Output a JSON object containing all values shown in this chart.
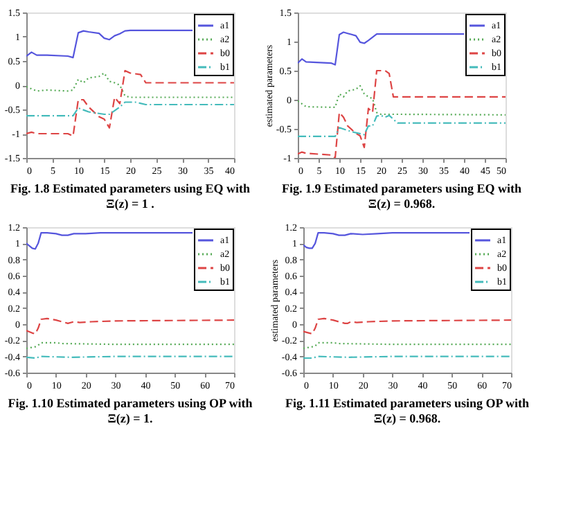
{
  "chart_data": [
    {
      "type": "line",
      "title": "Fig. 1.8 Estimated parameters using EQ with\nΞ(z) = 1 .",
      "xlim": [
        0,
        40
      ],
      "xticks": [
        0,
        5,
        10,
        15,
        20,
        25,
        30,
        35,
        40
      ],
      "ylim": [
        -1.5,
        1.5
      ],
      "yticks": [
        -1.5,
        -1,
        -0.5,
        0,
        0.5,
        1,
        1.5
      ],
      "grid": false,
      "legend": "top right",
      "series": [
        {
          "name": "a1",
          "color": "#5555dd",
          "line_style": "solid",
          "x": [
            0,
            1,
            2,
            4,
            8,
            9,
            10,
            11,
            12,
            14,
            15,
            16,
            17,
            18,
            19,
            20,
            32
          ],
          "values": [
            0.6,
            0.68,
            0.62,
            0.62,
            0.6,
            0.57,
            1.08,
            1.12,
            1.1,
            1.07,
            0.97,
            0.94,
            1.02,
            1.06,
            1.12,
            1.13,
            1.13
          ]
        },
        {
          "name": "a2",
          "color": "#55aa55",
          "line_style": "dotted",
          "x": [
            0,
            2,
            4,
            8,
            9,
            10,
            11,
            12,
            14,
            15,
            16,
            17,
            18,
            19,
            20,
            40
          ],
          "values": [
            -0.03,
            -0.12,
            -0.1,
            -0.12,
            -0.1,
            0.12,
            0.05,
            0.15,
            0.18,
            0.25,
            0.08,
            0.05,
            0,
            -0.22,
            -0.25,
            -0.25
          ]
        },
        {
          "name": "b0",
          "color": "#dd4444",
          "line_style": "dashed",
          "x": [
            0,
            1,
            2,
            8,
            9,
            10,
            11,
            12,
            14,
            15,
            16,
            17,
            18,
            19,
            20,
            22,
            23,
            40
          ],
          "values": [
            -1,
            -0.97,
            -1,
            -1,
            -1.05,
            -0.3,
            -0.3,
            -0.45,
            -0.65,
            -0.7,
            -0.88,
            -0.25,
            -0.38,
            0.3,
            0.25,
            0.22,
            0.05,
            0.05
          ]
        },
        {
          "name": "b1",
          "color": "#44bbbb",
          "line_style": "dashdot",
          "x": [
            0,
            9,
            10,
            12,
            15,
            16,
            18,
            19,
            21,
            23,
            40
          ],
          "values": [
            -0.63,
            -0.63,
            -0.47,
            -0.55,
            -0.6,
            -0.6,
            -0.45,
            -0.35,
            -0.35,
            -0.4,
            -0.4
          ]
        }
      ]
    },
    {
      "type": "line",
      "title": "Fig. 1.9 Estimated parameters using EQ with\nΞ(z) = 0.968.",
      "ylabel": "estimated parameters",
      "xlim": [
        0,
        50
      ],
      "xticks": [
        0,
        5,
        10,
        15,
        20,
        25,
        30,
        35,
        40,
        45,
        50
      ],
      "ylim": [
        -1,
        1.5
      ],
      "yticks": [
        -1,
        -0.5,
        0,
        0.5,
        1,
        1.5
      ],
      "grid": false,
      "legend": "top right",
      "series": [
        {
          "name": "a1",
          "color": "#5555dd",
          "line_style": "solid",
          "x": [
            0,
            1,
            2,
            8,
            9,
            10,
            11,
            12,
            14,
            15,
            16,
            17,
            19,
            40
          ],
          "values": [
            0.63,
            0.7,
            0.65,
            0.63,
            0.6,
            1.12,
            1.16,
            1.14,
            1.1,
            0.99,
            0.97,
            1.02,
            1.13,
            1.13
          ]
        },
        {
          "name": "a2",
          "color": "#55aa55",
          "line_style": "dotted",
          "x": [
            0,
            2,
            8,
            9,
            10,
            11,
            12,
            14,
            15,
            16,
            17,
            18,
            19,
            20,
            25,
            50
          ],
          "values": [
            -0.02,
            -0.12,
            -0.13,
            -0.13,
            0.1,
            0.05,
            0.15,
            0.18,
            0.24,
            0.1,
            0.05,
            0.02,
            -0.22,
            -0.25,
            -0.25,
            -0.26
          ]
        },
        {
          "name": "b0",
          "color": "#dd4444",
          "line_style": "dashed",
          "x": [
            0,
            1,
            2,
            8,
            9,
            10,
            11,
            12,
            14,
            15,
            16,
            17,
            18,
            19,
            21,
            22,
            23,
            50
          ],
          "values": [
            -0.93,
            -0.9,
            -0.92,
            -0.95,
            -1.0,
            -0.22,
            -0.3,
            -0.45,
            -0.58,
            -0.62,
            -0.82,
            -0.15,
            -0.22,
            0.5,
            0.5,
            0.45,
            0.05,
            0.05
          ]
        },
        {
          "name": "b1",
          "color": "#44bbbb",
          "line_style": "dashdot",
          "x": [
            0,
            9,
            10,
            13,
            16,
            17,
            18,
            19,
            20,
            21,
            22,
            24,
            50
          ],
          "values": [
            -0.63,
            -0.63,
            -0.48,
            -0.55,
            -0.6,
            -0.45,
            -0.45,
            -0.28,
            -0.27,
            -0.3,
            -0.27,
            -0.4,
            -0.4
          ]
        }
      ]
    },
    {
      "type": "line",
      "title": "Fig. 1.10  Estimated parameters using OP with\nΞ(z) = 1.",
      "xlim": [
        0,
        70
      ],
      "xticks": [
        0,
        10,
        20,
        30,
        40,
        50,
        60,
        70
      ],
      "ylim": [
        -0.6,
        1.2
      ],
      "yticks": [
        -0.6,
        -0.4,
        -0.2,
        0,
        0.2,
        0.4,
        0.6,
        0.8,
        1,
        1.2
      ],
      "grid": false,
      "legend": "top right",
      "series": [
        {
          "name": "a1",
          "color": "#5555dd",
          "line_style": "solid",
          "x": [
            0,
            1,
            2,
            3,
            4,
            5,
            7,
            10,
            12,
            14,
            16,
            20,
            25,
            30,
            56
          ],
          "values": [
            1.0,
            0.97,
            0.94,
            0.93,
            1.0,
            1.13,
            1.13,
            1.12,
            1.1,
            1.1,
            1.12,
            1.12,
            1.13,
            1.13,
            1.13
          ]
        },
        {
          "name": "a2",
          "color": "#55aa55",
          "line_style": "dotted",
          "x": [
            0,
            3,
            4,
            5,
            10,
            12,
            30,
            70
          ],
          "values": [
            -0.3,
            -0.28,
            -0.26,
            -0.23,
            -0.23,
            -0.24,
            -0.25,
            -0.25
          ]
        },
        {
          "name": "b0",
          "color": "#dd4444",
          "line_style": "dashed",
          "x": [
            0,
            2,
            3,
            4,
            5,
            7,
            10,
            12,
            14,
            16,
            18,
            22,
            30,
            70
          ],
          "values": [
            -0.08,
            -0.11,
            -0.12,
            -0.05,
            0.06,
            0.07,
            0.05,
            0.03,
            0.01,
            0.03,
            0.02,
            0.03,
            0.04,
            0.05
          ]
        },
        {
          "name": "b1",
          "color": "#44bbbb",
          "line_style": "dashdot",
          "x": [
            0,
            3,
            5,
            15,
            30,
            70
          ],
          "values": [
            -0.41,
            -0.42,
            -0.4,
            -0.41,
            -0.4,
            -0.4
          ]
        }
      ]
    },
    {
      "type": "line",
      "title": "Fig. 1.11 Estimated parameters using OP with\nΞ(z) = 0.968.",
      "ylabel": "estimated parameters",
      "xlim": [
        0,
        70
      ],
      "xticks": [
        0,
        10,
        20,
        30,
        40,
        50,
        60,
        70
      ],
      "ylim": [
        -0.6,
        1.2
      ],
      "yticks": [
        -0.6,
        -0.4,
        -0.2,
        0,
        0.2,
        0.4,
        0.6,
        0.8,
        1,
        1.2
      ],
      "grid": false,
      "legend": "top right",
      "series": [
        {
          "name": "a1",
          "color": "#5555dd",
          "line_style": "solid",
          "x": [
            0,
            1,
            2,
            3,
            4,
            5,
            7,
            10,
            12,
            14,
            16,
            20,
            25,
            30,
            56
          ],
          "values": [
            0.98,
            0.95,
            0.94,
            0.94,
            1.0,
            1.13,
            1.13,
            1.12,
            1.1,
            1.1,
            1.12,
            1.11,
            1.12,
            1.13,
            1.13
          ]
        },
        {
          "name": "a2",
          "color": "#55aa55",
          "line_style": "dotted",
          "x": [
            0,
            3,
            4,
            5,
            10,
            12,
            30,
            70
          ],
          "values": [
            -0.3,
            -0.28,
            -0.27,
            -0.23,
            -0.23,
            -0.24,
            -0.25,
            -0.25
          ]
        },
        {
          "name": "b0",
          "color": "#dd4444",
          "line_style": "dashed",
          "x": [
            0,
            2,
            3,
            4,
            5,
            7,
            10,
            12,
            14,
            15,
            16,
            18,
            22,
            30,
            70
          ],
          "values": [
            -0.09,
            -0.11,
            -0.12,
            -0.05,
            0.06,
            0.07,
            0.05,
            0.03,
            0.01,
            0.01,
            0.03,
            0.02,
            0.03,
            0.04,
            0.05
          ]
        },
        {
          "name": "b1",
          "color": "#44bbbb",
          "line_style": "dashdot",
          "x": [
            0,
            3,
            5,
            15,
            30,
            70
          ],
          "values": [
            -0.42,
            -0.42,
            -0.4,
            -0.41,
            -0.4,
            -0.4
          ]
        }
      ]
    }
  ]
}
